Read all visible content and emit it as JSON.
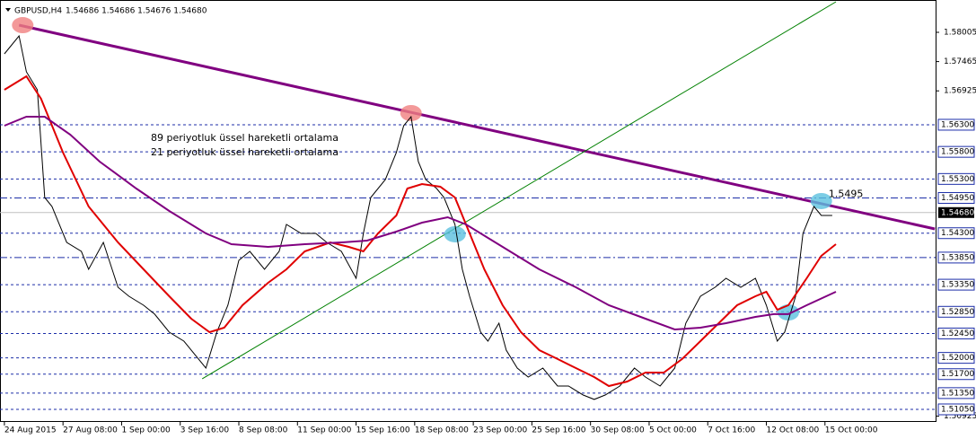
{
  "chart_data": {
    "type": "line",
    "title": "GBPUSD,H4",
    "quote": "1.54686 1.54686 1.54676 1.54680",
    "xlim": [
      -1.2,
      254.2
    ],
    "ylim": [
      1.50818,
      1.58601
    ],
    "xticks": [
      {
        "value": 0,
        "label": "24 Aug 2015"
      },
      {
        "value": 16,
        "label": "27 Aug 08:00"
      },
      {
        "value": 32,
        "label": "1 Sep 00:00"
      },
      {
        "value": 48,
        "label": "3 Sep 16:00"
      },
      {
        "value": 64,
        "label": "8 Sep 08:00"
      },
      {
        "value": 80,
        "label": "11 Sep 00:00"
      },
      {
        "value": 96,
        "label": "15 Sep 16:00"
      },
      {
        "value": 112,
        "label": "18 Sep 08:00"
      },
      {
        "value": 128,
        "label": "23 Sep 00:00"
      },
      {
        "value": 144,
        "label": "25 Sep 16:00"
      },
      {
        "value": 160,
        "label": "30 Sep 08:00"
      },
      {
        "value": 176,
        "label": "5 Oct 00:00"
      },
      {
        "value": 192,
        "label": "7 Oct 16:00"
      },
      {
        "value": 208,
        "label": "12 Oct 08:00"
      },
      {
        "value": 224,
        "label": "15 Oct 00:00"
      }
    ],
    "yticks": [
      1.58005,
      1.57465,
      1.56925,
      1.50925
    ],
    "levels": [
      {
        "value": 1.563,
        "label": "1.56300"
      },
      {
        "value": 1.558,
        "label": "1.55800"
      },
      {
        "value": 1.553,
        "label": "1.55300"
      },
      {
        "value": 1.5495,
        "label": "1.54950",
        "style": "dashdot"
      },
      {
        "value": 1.543,
        "label": "1.54300"
      },
      {
        "value": 1.5385,
        "label": "1.53850",
        "style": "dashdot"
      },
      {
        "value": 1.5335,
        "label": "1.53350"
      },
      {
        "value": 1.5285,
        "label": "1.52850"
      },
      {
        "value": 1.5245,
        "label": "1.52450"
      },
      {
        "value": 1.52,
        "label": "1.52000"
      },
      {
        "value": 1.517,
        "label": "1.51700"
      },
      {
        "value": 1.5135,
        "label": "1.51350"
      },
      {
        "value": 1.5105,
        "label": "1.51050"
      }
    ],
    "current_price": {
      "value": 1.5468,
      "label": "1.54680"
    },
    "series": [
      {
        "name": "GBPUSD",
        "color": "#000000",
        "x": [
          0,
          4,
          6,
          9,
          11,
          13,
          17,
          21,
          23,
          27,
          31,
          34,
          38,
          41,
          45,
          49,
          53,
          55,
          58,
          61,
          64,
          67,
          71,
          75,
          77,
          81,
          85,
          88,
          92,
          96,
          98,
          100,
          104,
          107,
          109,
          111,
          113,
          115,
          118,
          120,
          123,
          125,
          127,
          130,
          132,
          135,
          137,
          140,
          143,
          147,
          151,
          154,
          158,
          161,
          164,
          168,
          172,
          175,
          179,
          183,
          186,
          190,
          194,
          197,
          201,
          205,
          208,
          211,
          213,
          216,
          218,
          221,
          223,
          226
        ],
        "values": [
          1.57608,
          1.57939,
          1.57276,
          1.56945,
          1.54958,
          1.54793,
          1.5413,
          1.53965,
          1.53633,
          1.5413,
          1.53302,
          1.53137,
          1.52971,
          1.52806,
          1.52474,
          1.52309,
          1.51978,
          1.51812,
          1.52474,
          1.52971,
          1.53799,
          1.53965,
          1.53633,
          1.53965,
          1.54461,
          1.54296,
          1.54296,
          1.5413,
          1.53965,
          1.53468,
          1.54296,
          1.54958,
          1.55289,
          1.55786,
          1.56283,
          1.56448,
          1.5562,
          1.55289,
          1.55124,
          1.54958,
          1.54461,
          1.53633,
          1.53137,
          1.52474,
          1.52309,
          1.5264,
          1.52143,
          1.51812,
          1.51646,
          1.51812,
          1.51481,
          1.51481,
          1.51315,
          1.51233,
          1.51315,
          1.51481,
          1.51812,
          1.51646,
          1.51481,
          1.51812,
          1.5264,
          1.53137,
          1.53302,
          1.53468,
          1.53302,
          1.53468,
          1.52971,
          1.52309,
          1.52474,
          1.53137,
          1.54296,
          1.54793,
          1.54627,
          1.54627
        ]
      },
      {
        "name": "21  periyotluk üssel hareketli ortalama",
        "color": "#e00000",
        "x": [
          0,
          6,
          10,
          16,
          23,
          31,
          38,
          45,
          51,
          56,
          60,
          65,
          72,
          77,
          82,
          89,
          94,
          98,
          102,
          107,
          110,
          114,
          119,
          123,
          126,
          131,
          136,
          141,
          146,
          151,
          156,
          161,
          165,
          170,
          175,
          180,
          185,
          190,
          195,
          200,
          205,
          208,
          211,
          214,
          219,
          223,
          227
        ],
        "values": [
          1.56945,
          1.57194,
          1.5678,
          1.55786,
          1.54793,
          1.5413,
          1.53633,
          1.53137,
          1.52722,
          1.52474,
          1.52557,
          1.52971,
          1.53385,
          1.53633,
          1.53965,
          1.5413,
          1.54047,
          1.53965,
          1.54296,
          1.54627,
          1.55124,
          1.55206,
          1.55157,
          1.54958,
          1.54461,
          1.53633,
          1.52971,
          1.52474,
          1.52143,
          1.51978,
          1.51812,
          1.51646,
          1.51481,
          1.51563,
          1.51729,
          1.51729,
          1.51978,
          1.52309,
          1.5264,
          1.52971,
          1.53137,
          1.53219,
          1.52888,
          1.52971,
          1.53468,
          1.53882,
          1.54097
        ]
      },
      {
        "name": "89  periyotluk üssel hareketli ortalama",
        "color": "#800080",
        "x": [
          0,
          6,
          11,
          18,
          26,
          36,
          45,
          55,
          62,
          72,
          82,
          92,
          99,
          107,
          114,
          121,
          126,
          136,
          146,
          156,
          165,
          175,
          183,
          190,
          197,
          205,
          210,
          214,
          219,
          227
        ],
        "values": [
          1.56283,
          1.56448,
          1.56448,
          1.56117,
          1.5562,
          1.55124,
          1.5471,
          1.54296,
          1.54097,
          1.54047,
          1.54097,
          1.5413,
          1.54163,
          1.54329,
          1.54494,
          1.54594,
          1.54461,
          1.54047,
          1.53633,
          1.53302,
          1.52971,
          1.52722,
          1.52524,
          1.52557,
          1.5264,
          1.52755,
          1.52806,
          1.52806,
          1.52971,
          1.53219
        ]
      }
    ],
    "trend_lines": [
      {
        "x": [
          4,
          254
        ],
        "values": [
          1.58137,
          1.54378
        ],
        "color": "#800080"
      },
      {
        "x": [
          54,
          227
        ],
        "values": [
          1.51613,
          1.58568
        ],
        "color": "#008000"
      }
    ],
    "markers": [
      {
        "x": 5,
        "value": 1.58137,
        "color": "#f08080"
      },
      {
        "x": 111,
        "value": 1.56515,
        "color": "#f08080"
      },
      {
        "x": 123,
        "value": 1.54279,
        "color": "#5bc0de"
      },
      {
        "x": 214,
        "value": 1.52838,
        "color": "#5bc0de"
      },
      {
        "x": 223,
        "value": 1.54892,
        "color": "#5bc0de"
      }
    ],
    "annotation": {
      "x": 225,
      "value": 1.5495,
      "label": "1.5495"
    }
  }
}
